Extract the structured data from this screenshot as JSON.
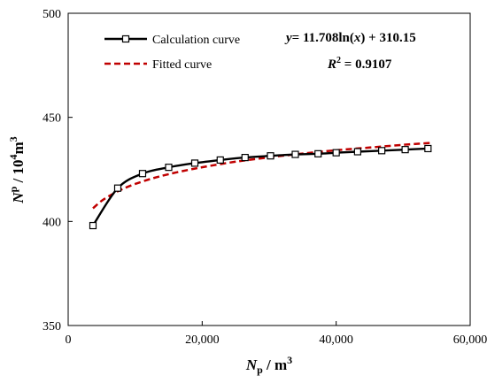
{
  "chart_data": {
    "type": "line",
    "xlabel": "Np / m³",
    "ylabel": "Np / 10⁴m³",
    "xlim": [
      0,
      60000
    ],
    "ylim": [
      350,
      500
    ],
    "xticks": [
      0,
      20000,
      40000,
      60000
    ],
    "xtick_labels": [
      "0",
      "20,000",
      "40,000",
      "60,000"
    ],
    "yticks": [
      350,
      400,
      450,
      500
    ],
    "ytick_labels": [
      "350",
      "400",
      "450",
      "500"
    ],
    "grid": false,
    "legend_position": "top-left",
    "series": [
      {
        "name": "Calculation curve",
        "color": "#000000",
        "style": "solid",
        "marker": "square",
        "x": [
          3700,
          7400,
          11100,
          15000,
          18900,
          22700,
          26400,
          30200,
          33900,
          37300,
          40000,
          43200,
          46800,
          50300,
          53700
        ],
        "y": [
          398,
          416,
          423,
          426,
          428,
          429.5,
          430.7,
          431.5,
          432.2,
          432.5,
          433,
          433.5,
          434,
          434.5,
          435
        ]
      },
      {
        "name": "Fitted curve",
        "color": "#c00000",
        "style": "dashed",
        "marker": "none",
        "x": [
          3700,
          5000,
          6500,
          8000,
          10000,
          12500,
          15000,
          18000,
          21000,
          25000,
          30000,
          35000,
          40000,
          45000,
          50000,
          54000
        ],
        "y": [
          406.3,
          409.9,
          412.9,
          415.4,
          418.0,
          420.6,
          422.7,
          424.8,
          426.6,
          428.7,
          430.8,
          432.6,
          434.2,
          435.5,
          436.8,
          437.7
        ]
      }
    ],
    "annotations": {
      "equation_prefix": "y",
      "equation_mid": "= 11.708ln(",
      "equation_var": "x",
      "equation_suffix": ") + 310.15",
      "r2_prefix": "R",
      "r2_sup": "2",
      "r2_suffix": " = 0.9107"
    }
  },
  "axis_titles": {
    "x_main": "N",
    "x_sub": "p",
    "x_rest": " / m",
    "x_sup": "3",
    "y_main": "N",
    "y_sup1": "p",
    "y_mid": " / 10",
    "y_sup2": "4",
    "y_rest": "m",
    "y_sup3": "3"
  }
}
